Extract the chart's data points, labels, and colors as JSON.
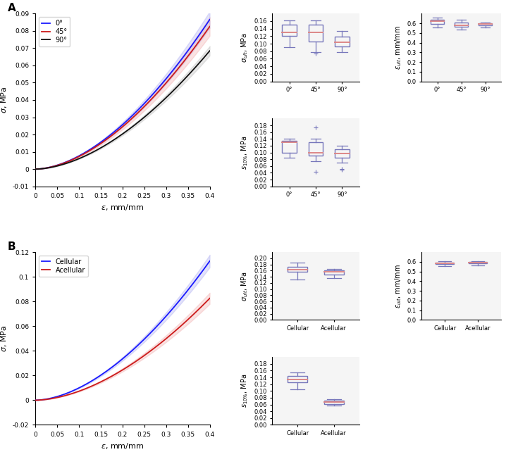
{
  "panel_A_label": "A",
  "panel_B_label": "B",
  "line_colors_A": [
    "#1a1aff",
    "#cc1a1a",
    "#111111"
  ],
  "fill_colors_A": [
    "#9999ee",
    "#ee9999",
    "#aaaaaa"
  ],
  "line_labels_A": [
    "0°",
    "45°",
    "90°"
  ],
  "line_colors_B": [
    "#1a1aff",
    "#cc1a1a"
  ],
  "fill_colors_B": [
    "#9999ee",
    "#ee9999"
  ],
  "line_labels_B": [
    "Cellular",
    "Acellular"
  ],
  "box_edge_color": "#7777bb",
  "median_color": "#dd8888",
  "sigma_ult_A": {
    "0": {
      "q1": 0.12,
      "median": 0.13,
      "q3": 0.15,
      "wlo": 0.09,
      "whi": 0.162,
      "outlo": [],
      "outhi": []
    },
    "45": {
      "q1": 0.105,
      "median": 0.13,
      "q3": 0.15,
      "wlo": 0.078,
      "whi": 0.162,
      "outlo": [
        0.073
      ],
      "outhi": []
    },
    "90": {
      "q1": 0.092,
      "median": 0.104,
      "q3": 0.118,
      "wlo": 0.078,
      "whi": 0.133,
      "outlo": [],
      "outhi": []
    }
  },
  "epsilon_ult_A": {
    "0": {
      "q1": 0.595,
      "median": 0.625,
      "q3": 0.64,
      "wlo": 0.56,
      "whi": 0.655,
      "outlo": [],
      "outhi": []
    },
    "45": {
      "q1": 0.565,
      "median": 0.58,
      "q3": 0.61,
      "wlo": 0.535,
      "whi": 0.635,
      "outlo": [],
      "outhi": []
    },
    "90": {
      "q1": 0.575,
      "median": 0.59,
      "q3": 0.6,
      "wlo": 0.555,
      "whi": 0.61,
      "outlo": [],
      "outhi": []
    }
  },
  "s10_A": {
    "0": {
      "q1": 0.1,
      "median": 0.13,
      "q3": 0.135,
      "wlo": 0.085,
      "whi": 0.14,
      "outlo": [],
      "outhi": []
    },
    "45": {
      "q1": 0.09,
      "median": 0.1,
      "q3": 0.13,
      "wlo": 0.075,
      "whi": 0.14,
      "outlo": [
        0.043
      ],
      "outhi": [
        0.175
      ]
    },
    "90": {
      "q1": 0.085,
      "median": 0.097,
      "q3": 0.11,
      "wlo": 0.07,
      "whi": 0.12,
      "outlo": [
        0.05,
        0.052
      ],
      "outhi": []
    }
  },
  "sigma_ult_B": {
    "Cellular": {
      "q1": 0.155,
      "median": 0.162,
      "q3": 0.173,
      "wlo": 0.13,
      "whi": 0.185,
      "outlo": [],
      "outhi": []
    },
    "Acellular": {
      "q1": 0.148,
      "median": 0.155,
      "q3": 0.16,
      "wlo": 0.135,
      "whi": 0.165,
      "outlo": [],
      "outhi": []
    }
  },
  "epsilon_ult_B": {
    "Cellular": {
      "q1": 0.578,
      "median": 0.585,
      "q3": 0.594,
      "wlo": 0.558,
      "whi": 0.604,
      "outlo": [],
      "outhi": []
    },
    "Acellular": {
      "q1": 0.582,
      "median": 0.592,
      "q3": 0.601,
      "wlo": 0.565,
      "whi": 0.608,
      "outlo": [],
      "outhi": []
    }
  },
  "s10_B": {
    "Cellular": {
      "q1": 0.125,
      "median": 0.135,
      "q3": 0.145,
      "wlo": 0.105,
      "whi": 0.155,
      "outlo": [],
      "outhi": []
    },
    "Acellular": {
      "q1": 0.062,
      "median": 0.067,
      "q3": 0.072,
      "wlo": 0.058,
      "whi": 0.076,
      "outlo": [],
      "outhi": []
    }
  },
  "A_line_ylim": [
    -0.01,
    0.09
  ],
  "A_line_yticks": [
    -0.01,
    0,
    0.01,
    0.02,
    0.03,
    0.04,
    0.05,
    0.06,
    0.07,
    0.08,
    0.09
  ],
  "A_line_xticks": [
    0,
    0.05,
    0.1,
    0.15,
    0.2,
    0.25,
    0.3,
    0.35,
    0.4
  ],
  "B_line_ylim": [
    -0.02,
    0.12
  ],
  "B_line_yticks": [
    -0.02,
    0,
    0.02,
    0.04,
    0.06,
    0.08,
    0.1,
    0.12
  ],
  "B_line_xticks": [
    0,
    0.05,
    0.1,
    0.15,
    0.2,
    0.25,
    0.3,
    0.35,
    0.4
  ]
}
